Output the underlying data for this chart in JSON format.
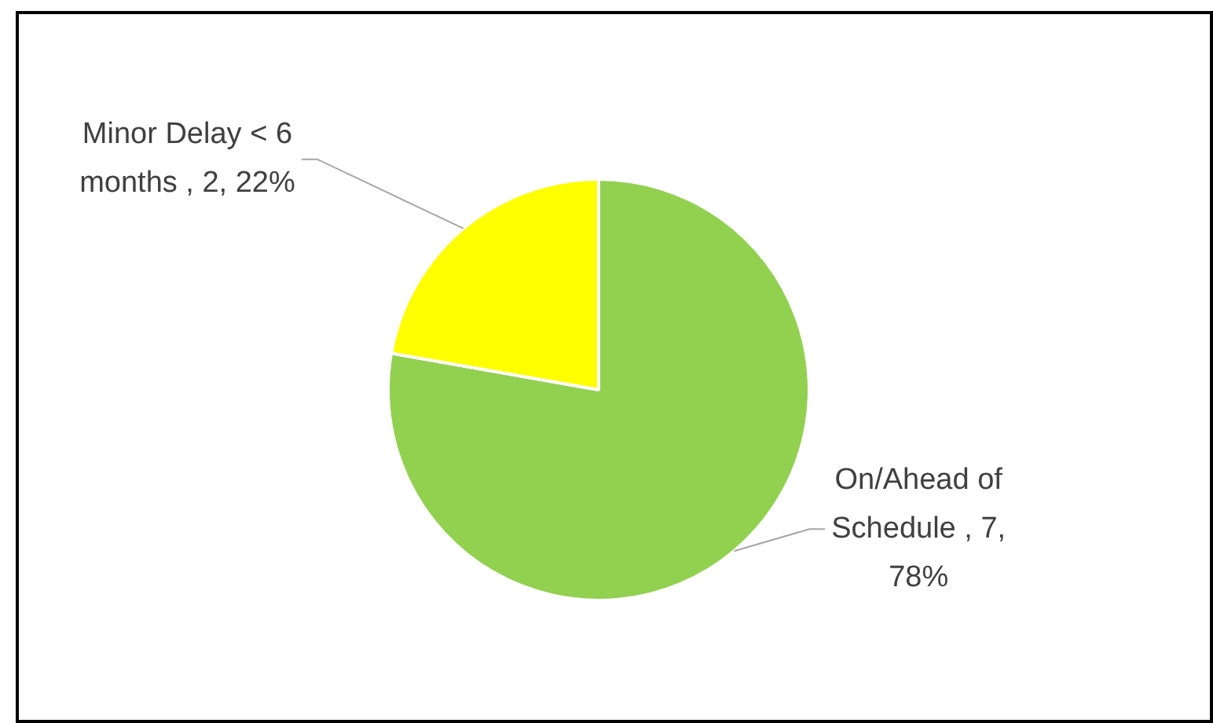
{
  "chart_data": {
    "type": "pie",
    "categories": [
      "On/Ahead of Schedule",
      "Minor Delay < 6 months"
    ],
    "values": [
      7,
      2
    ],
    "colors": [
      "#92d050",
      "#ffff00"
    ],
    "value_labels": [
      "7, 78%",
      "2, 22%"
    ],
    "legend": false
  }
}
